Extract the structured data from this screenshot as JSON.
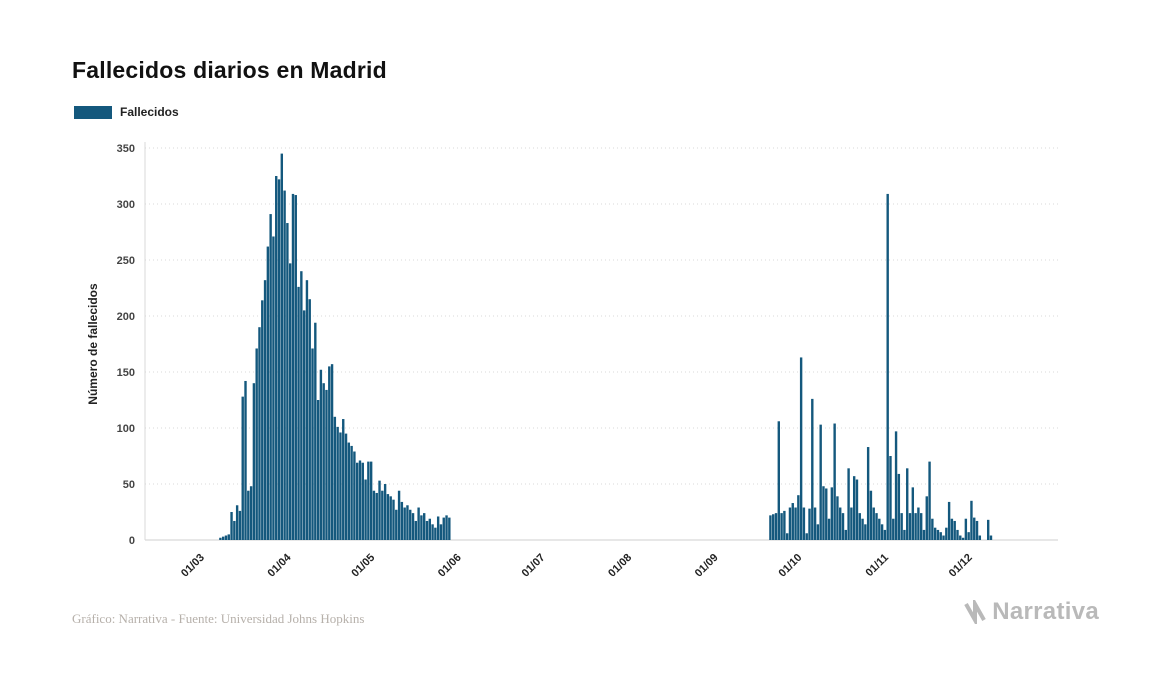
{
  "title": "Fallecidos diarios en Madrid",
  "legend": {
    "label": "Fallecidos"
  },
  "footer": {
    "credit": "Gráfico: Narrativa - Fuente: Universidad Johns Hopkins",
    "logo_text": "Narrativa"
  },
  "colors": {
    "bar": "#14587d",
    "grid": "#d9d9d9",
    "baseline": "#cfcfcf"
  },
  "chart_data": {
    "type": "bar",
    "title": "Fallecidos diarios en Madrid",
    "xlabel": "",
    "ylabel": "Número de fallecidos",
    "ylim": [
      0,
      350
    ],
    "yticks": [
      0,
      50,
      100,
      150,
      200,
      250,
      300,
      350
    ],
    "grid": "dotted-horizontal",
    "legend_position": "top-left",
    "x_domain": [
      "2020-02-10",
      "2021-01-02"
    ],
    "xticks": [
      {
        "label": "01/03",
        "date": "2020-03-01"
      },
      {
        "label": "01/04",
        "date": "2020-04-01"
      },
      {
        "label": "01/05",
        "date": "2020-05-01"
      },
      {
        "label": "01/06",
        "date": "2020-06-01"
      },
      {
        "label": "01/07",
        "date": "2020-07-01"
      },
      {
        "label": "01/08",
        "date": "2020-08-01"
      },
      {
        "label": "01/09",
        "date": "2020-09-01"
      },
      {
        "label": "01/10",
        "date": "2020-10-01"
      },
      {
        "label": "01/11",
        "date": "2020-11-01"
      },
      {
        "label": "01/12",
        "date": "2020-12-01"
      }
    ],
    "series": [
      {
        "name": "Fallecidos",
        "color": "#14587d",
        "points": [
          [
            "2020-03-08",
            2
          ],
          [
            "2020-03-09",
            3
          ],
          [
            "2020-03-10",
            4
          ],
          [
            "2020-03-11",
            5
          ],
          [
            "2020-03-12",
            25
          ],
          [
            "2020-03-13",
            17
          ],
          [
            "2020-03-14",
            31
          ],
          [
            "2020-03-15",
            26
          ],
          [
            "2020-03-16",
            128
          ],
          [
            "2020-03-17",
            142
          ],
          [
            "2020-03-18",
            44
          ],
          [
            "2020-03-19",
            48
          ],
          [
            "2020-03-20",
            140
          ],
          [
            "2020-03-21",
            171
          ],
          [
            "2020-03-22",
            190
          ],
          [
            "2020-03-23",
            214
          ],
          [
            "2020-03-24",
            232
          ],
          [
            "2020-03-25",
            262
          ],
          [
            "2020-03-26",
            291
          ],
          [
            "2020-03-27",
            271
          ],
          [
            "2020-03-28",
            325
          ],
          [
            "2020-03-29",
            322
          ],
          [
            "2020-03-30",
            345
          ],
          [
            "2020-03-31",
            312
          ],
          [
            "2020-04-01",
            283
          ],
          [
            "2020-04-02",
            247
          ],
          [
            "2020-04-03",
            309
          ],
          [
            "2020-04-04",
            308
          ],
          [
            "2020-04-05",
            226
          ],
          [
            "2020-04-06",
            240
          ],
          [
            "2020-04-07",
            205
          ],
          [
            "2020-04-08",
            232
          ],
          [
            "2020-04-09",
            215
          ],
          [
            "2020-04-10",
            171
          ],
          [
            "2020-04-11",
            194
          ],
          [
            "2020-04-12",
            125
          ],
          [
            "2020-04-13",
            152
          ],
          [
            "2020-04-14",
            140
          ],
          [
            "2020-04-15",
            134
          ],
          [
            "2020-04-16",
            155
          ],
          [
            "2020-04-17",
            157
          ],
          [
            "2020-04-18",
            110
          ],
          [
            "2020-04-19",
            101
          ],
          [
            "2020-04-20",
            96
          ],
          [
            "2020-04-21",
            108
          ],
          [
            "2020-04-22",
            95
          ],
          [
            "2020-04-23",
            87
          ],
          [
            "2020-04-24",
            84
          ],
          [
            "2020-04-25",
            79
          ],
          [
            "2020-04-26",
            69
          ],
          [
            "2020-04-27",
            71
          ],
          [
            "2020-04-28",
            69
          ],
          [
            "2020-04-29",
            54
          ],
          [
            "2020-04-30",
            70
          ],
          [
            "2020-05-01",
            70
          ],
          [
            "2020-05-02",
            44
          ],
          [
            "2020-05-03",
            42
          ],
          [
            "2020-05-04",
            53
          ],
          [
            "2020-05-05",
            44
          ],
          [
            "2020-05-06",
            50
          ],
          [
            "2020-05-07",
            41
          ],
          [
            "2020-05-08",
            39
          ],
          [
            "2020-05-09",
            36
          ],
          [
            "2020-05-10",
            27
          ],
          [
            "2020-05-11",
            44
          ],
          [
            "2020-05-12",
            34
          ],
          [
            "2020-05-13",
            29
          ],
          [
            "2020-05-14",
            31
          ],
          [
            "2020-05-15",
            27
          ],
          [
            "2020-05-16",
            24
          ],
          [
            "2020-05-17",
            17
          ],
          [
            "2020-05-18",
            29
          ],
          [
            "2020-05-19",
            22
          ],
          [
            "2020-05-20",
            24
          ],
          [
            "2020-05-21",
            17
          ],
          [
            "2020-05-22",
            19
          ],
          [
            "2020-05-23",
            14
          ],
          [
            "2020-05-24",
            11
          ],
          [
            "2020-05-25",
            21
          ],
          [
            "2020-05-26",
            14
          ],
          [
            "2020-05-27",
            20
          ],
          [
            "2020-05-28",
            22
          ],
          [
            "2020-05-29",
            20
          ],
          [
            "2020-09-21",
            22
          ],
          [
            "2020-09-22",
            23
          ],
          [
            "2020-09-23",
            24
          ],
          [
            "2020-09-24",
            106
          ],
          [
            "2020-09-25",
            24
          ],
          [
            "2020-09-26",
            26
          ],
          [
            "2020-09-27",
            6
          ],
          [
            "2020-09-28",
            29
          ],
          [
            "2020-09-29",
            33
          ],
          [
            "2020-09-30",
            29
          ],
          [
            "2020-10-01",
            40
          ],
          [
            "2020-10-02",
            163
          ],
          [
            "2020-10-03",
            29
          ],
          [
            "2020-10-04",
            6
          ],
          [
            "2020-10-05",
            28
          ],
          [
            "2020-10-06",
            126
          ],
          [
            "2020-10-07",
            29
          ],
          [
            "2020-10-08",
            14
          ],
          [
            "2020-10-09",
            103
          ],
          [
            "2020-10-10",
            48
          ],
          [
            "2020-10-11",
            46
          ],
          [
            "2020-10-12",
            19
          ],
          [
            "2020-10-13",
            47
          ],
          [
            "2020-10-14",
            104
          ],
          [
            "2020-10-15",
            39
          ],
          [
            "2020-10-16",
            29
          ],
          [
            "2020-10-17",
            24
          ],
          [
            "2020-10-18",
            9
          ],
          [
            "2020-10-19",
            64
          ],
          [
            "2020-10-20",
            29
          ],
          [
            "2020-10-21",
            57
          ],
          [
            "2020-10-22",
            54
          ],
          [
            "2020-10-23",
            24
          ],
          [
            "2020-10-24",
            19
          ],
          [
            "2020-10-25",
            14
          ],
          [
            "2020-10-26",
            83
          ],
          [
            "2020-10-27",
            44
          ],
          [
            "2020-10-28",
            29
          ],
          [
            "2020-10-29",
            24
          ],
          [
            "2020-10-30",
            19
          ],
          [
            "2020-10-31",
            14
          ],
          [
            "2020-11-01",
            9
          ],
          [
            "2020-11-02",
            309
          ],
          [
            "2020-11-03",
            75
          ],
          [
            "2020-11-04",
            19
          ],
          [
            "2020-11-05",
            97
          ],
          [
            "2020-11-06",
            59
          ],
          [
            "2020-11-07",
            24
          ],
          [
            "2020-11-08",
            9
          ],
          [
            "2020-11-09",
            64
          ],
          [
            "2020-11-10",
            24
          ],
          [
            "2020-11-11",
            47
          ],
          [
            "2020-11-12",
            24
          ],
          [
            "2020-11-13",
            29
          ],
          [
            "2020-11-14",
            24
          ],
          [
            "2020-11-15",
            9
          ],
          [
            "2020-11-16",
            39
          ],
          [
            "2020-11-17",
            70
          ],
          [
            "2020-11-18",
            19
          ],
          [
            "2020-11-19",
            11
          ],
          [
            "2020-11-20",
            9
          ],
          [
            "2020-11-21",
            7
          ],
          [
            "2020-11-22",
            4
          ],
          [
            "2020-11-23",
            11
          ],
          [
            "2020-11-24",
            34
          ],
          [
            "2020-11-25",
            19
          ],
          [
            "2020-11-26",
            17
          ],
          [
            "2020-11-27",
            9
          ],
          [
            "2020-11-28",
            4
          ],
          [
            "2020-11-29",
            2
          ],
          [
            "2020-11-30",
            19
          ],
          [
            "2020-12-01",
            7
          ],
          [
            "2020-12-02",
            35
          ],
          [
            "2020-12-03",
            20
          ],
          [
            "2020-12-04",
            17
          ],
          [
            "2020-12-05",
            4
          ],
          [
            "2020-12-08",
            18
          ],
          [
            "2020-12-09",
            4
          ]
        ]
      }
    ]
  }
}
